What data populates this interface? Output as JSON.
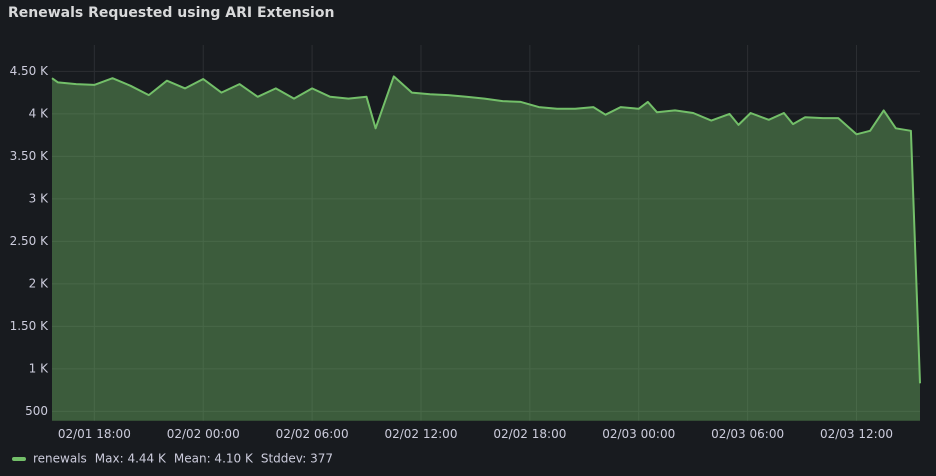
{
  "chart_data": {
    "type": "area",
    "title": "Renewals Requested using ARI Extension",
    "x": [
      "02/01 15:40",
      "02/01 16:00",
      "02/01 17:00",
      "02/01 18:00",
      "02/01 19:00",
      "02/01 20:00",
      "02/01 21:00",
      "02/01 22:00",
      "02/01 23:00",
      "02/02 00:00",
      "02/02 01:00",
      "02/02 02:00",
      "02/02 03:00",
      "02/02 04:00",
      "02/02 05:00",
      "02/02 06:00",
      "02/02 07:00",
      "02/02 08:00",
      "02/02 09:00",
      "02/02 09:30",
      "02/02 10:30",
      "02/02 11:30",
      "02/02 12:30",
      "02/02 13:30",
      "02/02 14:30",
      "02/02 15:30",
      "02/02 16:30",
      "02/02 17:30",
      "02/02 18:30",
      "02/02 19:30",
      "02/02 20:30",
      "02/02 21:30",
      "02/02 22:10",
      "02/02 23:00",
      "02/03 00:00",
      "02/03 00:30",
      "02/03 01:00",
      "02/03 02:00",
      "02/03 03:00",
      "02/03 04:00",
      "02/03 05:00",
      "02/03 05:30",
      "02/03 06:10",
      "02/03 07:10",
      "02/03 08:00",
      "02/03 08:30",
      "02/03 09:10",
      "02/03 10:10",
      "02/03 11:00",
      "02/03 12:00",
      "02/03 12:45",
      "02/03 13:30",
      "02/03 14:10",
      "02/03 15:00",
      "02/03 15:30"
    ],
    "series": [
      {
        "name": "renewals",
        "color": "#73bf69",
        "values": [
          4420,
          4370,
          4350,
          4340,
          4420,
          4330,
          4220,
          4390,
          4300,
          4410,
          4250,
          4350,
          4200,
          4300,
          4180,
          4300,
          4200,
          4180,
          4200,
          3830,
          4440,
          4250,
          4230,
          4220,
          4200,
          4180,
          4150,
          4140,
          4080,
          4060,
          4060,
          4080,
          3990,
          4080,
          4060,
          4140,
          4020,
          4040,
          4010,
          3920,
          4000,
          3870,
          4010,
          3930,
          4010,
          3880,
          3960,
          3950,
          3950,
          3760,
          3800,
          4040,
          3830,
          3800,
          830
        ]
      }
    ],
    "legend_stats": [
      "Max: 4.44 K",
      "Mean: 4.10 K",
      "Stddev: 377"
    ],
    "xlim": [
      "02/01 15:40",
      "02/03 15:30"
    ],
    "xticks": [
      "02/01 18:00",
      "02/02 00:00",
      "02/02 06:00",
      "02/02 12:00",
      "02/02 18:00",
      "02/03 00:00",
      "02/03 06:00",
      "02/03 12:00"
    ],
    "ylim": [
      390,
      4810
    ],
    "yticks": [
      500,
      {
        "value": 1000,
        "label": "1 K"
      },
      {
        "value": 1500,
        "label": "1.50 K"
      },
      {
        "value": 2000,
        "label": "2 K"
      },
      {
        "value": 2500,
        "label": "2.50 K"
      },
      {
        "value": 3000,
        "label": "3 K"
      },
      {
        "value": 3500,
        "label": "3.50 K"
      },
      {
        "value": 4000,
        "label": "4 K"
      },
      {
        "value": 4500,
        "label": "4.50 K"
      }
    ],
    "grid": true,
    "legend": "bottom-left"
  }
}
